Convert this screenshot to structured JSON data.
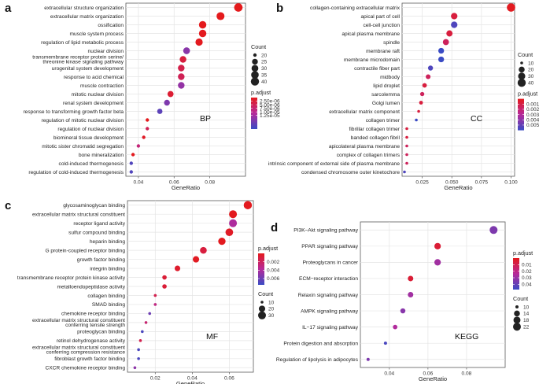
{
  "chart_data": [
    {
      "panel": "a",
      "type": "scatter",
      "annotation": "BP",
      "xlabel": "GeneRatio",
      "xlim": [
        0.033,
        0.1
      ],
      "xticks": [
        0.04,
        0.06,
        0.08
      ],
      "xtick_labels": [
        "0.04",
        "0.06",
        "0.08"
      ],
      "categories": [
        "extracellular structure organization",
        "extracellular matrix organization",
        "ossification",
        "muscle system process",
        "regulation of lipid metabolic process",
        "nuclear division",
        "transmembrane receptor protein serine/\nthreonine kinase signaling pathway",
        "urogenital system development",
        "response to acid chemical",
        "muscle contraction",
        "mitotic nuclear division",
        "renal system development",
        "response to transforming growth factor beta",
        "regulation of mitotic nuclear division",
        "regulation of nuclear division",
        "biomineral tissue development",
        "mitotic sister chromatid segregation",
        "bone mineralization",
        "cold-induced thermogenesis",
        "regulation of cold-induced thermogenesis"
      ],
      "gene_ratio": [
        0.096,
        0.086,
        0.076,
        0.076,
        0.074,
        0.067,
        0.065,
        0.064,
        0.064,
        0.064,
        0.058,
        0.056,
        0.052,
        0.045,
        0.045,
        0.043,
        0.04,
        0.037,
        0.036,
        0.036
      ],
      "count": [
        42,
        38,
        34,
        34,
        33,
        30,
        29,
        29,
        29,
        29,
        26,
        25,
        23,
        20,
        20,
        19,
        18,
        16,
        16,
        16
      ],
      "p_adjust": [
        1e-09,
        2e-08,
        5e-08,
        2e-07,
        3e-07,
        1.5e-05,
        3e-06,
        4e-06,
        5e-06,
        1.4e-05,
        2e-06,
        1.6e-05,
        1.9e-05,
        1e-07,
        5e-06,
        1e-06,
        8e-06,
        2e-07,
        2e-05,
        2e-05
      ],
      "size_legend": {
        "title": "Count",
        "values": [
          20,
          25,
          30,
          35,
          40
        ],
        "labels": [
          "20",
          "25",
          "30",
          "35",
          "40"
        ]
      },
      "color_legend": {
        "title": "p.adjust",
        "min": 0,
        "max": 2.2e-05,
        "ticks": [
          2.5e-06,
          5e-06,
          7.5e-06,
          1e-05,
          1.25e-05
        ],
        "labels": [
          "2.50e-06",
          "5.00e-06",
          "7.50e-06",
          "1.00e-05",
          "1.25e-05"
        ]
      }
    },
    {
      "panel": "b",
      "type": "scatter",
      "annotation": "CC",
      "xlabel": "GeneRatio",
      "xlim": [
        0.008,
        0.103
      ],
      "xticks": [
        0.025,
        0.05,
        0.075,
        0.1
      ],
      "xtick_labels": [
        "0.025",
        "0.050",
        "0.075",
        "0.100"
      ],
      "categories": [
        "collagen-containing extracellular matrix",
        "apical part of cell",
        "cell-cell junction",
        "apical plasma membrane",
        "spindle",
        "membrane raft",
        "membrane microdomain",
        "contractile fiber part",
        "midbody",
        "lipid droplet",
        "sarcolemma",
        "Golgi lumen",
        "extracellular matrix component",
        "collagen trimer",
        "fibrillar collagen trimer",
        "banded collagen fibril",
        "apicolateral plasma membrane",
        "complex of collagen trimers",
        "intrinsic component of external side of plasma membrane",
        "condensed chromosome outer kinetochore"
      ],
      "gene_ratio": [
        0.1,
        0.052,
        0.052,
        0.048,
        0.045,
        0.041,
        0.041,
        0.032,
        0.03,
        0.027,
        0.025,
        0.024,
        0.022,
        0.02,
        0.012,
        0.012,
        0.012,
        0.012,
        0.012,
        0.01
      ],
      "count": [
        42,
        24,
        24,
        22,
        21,
        19,
        19,
        15,
        14,
        13,
        12,
        11,
        10,
        9,
        6,
        6,
        6,
        6,
        6,
        5
      ],
      "p_adjust": [
        0.0001,
        0.0008,
        0.0055,
        0.0008,
        0.0015,
        0.006,
        0.006,
        0.0055,
        0.0015,
        0.0008,
        0.0015,
        0.0008,
        0.0008,
        0.006,
        0.0008,
        0.0008,
        0.0015,
        0.0015,
        0.0015,
        0.0055
      ],
      "size_legend": {
        "title": "Count",
        "values": [
          10,
          20,
          30,
          40
        ],
        "labels": [
          "10",
          "20",
          "30",
          "40"
        ]
      },
      "color_legend": {
        "title": "p.adjust",
        "min": 0,
        "max": 0.006,
        "ticks": [
          0.001,
          0.002,
          0.003,
          0.004,
          0.005
        ],
        "labels": [
          "0.001",
          "0.002",
          "0.003",
          "0.004",
          "0.005"
        ]
      }
    },
    {
      "panel": "c",
      "type": "scatter",
      "annotation": "MF",
      "xlabel": "GeneRatio",
      "xlim": [
        0.005,
        0.073
      ],
      "xticks": [
        0.02,
        0.04,
        0.06
      ],
      "xtick_labels": [
        "0.02",
        "0.04",
        "0.06"
      ],
      "categories": [
        "glycosaminoglycan binding",
        "extracellular matrix structural constituent",
        "receptor ligand activity",
        "sulfur compound binding",
        "heparin binding",
        "G protein-coupled receptor binding",
        "growth factor binding",
        "integrin binding",
        "transmembrane receptor protein kinase activity",
        "metalloendopeptidase activity",
        "collagen binding",
        "SMAD binding",
        "chemokine receptor binding",
        "extracellular matrix structural constituent\nconferring tensile strength",
        "proteoglycan binding",
        "retinol dehydrogenase activity",
        "extracellular matrix structural constituent\nconferring compression resistance",
        "fibroblast growth factor binding",
        "CXCR chemokine receptor binding"
      ],
      "gene_ratio": [
        0.07,
        0.062,
        0.062,
        0.06,
        0.056,
        0.046,
        0.042,
        0.032,
        0.025,
        0.025,
        0.02,
        0.02,
        0.017,
        0.015,
        0.013,
        0.012,
        0.011,
        0.011,
        0.009
      ],
      "count": [
        33,
        30,
        30,
        28,
        26,
        22,
        20,
        16,
        12,
        12,
        10,
        10,
        8,
        7,
        6,
        6,
        6,
        6,
        5
      ],
      "p_adjust": [
        0.0001,
        0.0001,
        0.004,
        0.0003,
        0.0001,
        0.001,
        0.0002,
        0.0005,
        0.0008,
        0.0008,
        0.0015,
        0.003,
        0.006,
        0.0025,
        0.007,
        0.0015,
        0.007,
        0.007,
        0.005
      ],
      "size_legend": {
        "title": "Count",
        "values": [
          10,
          20,
          30
        ],
        "labels": [
          "10",
          "20",
          "30"
        ]
      },
      "color_legend": {
        "title": "p.adjust",
        "min": 0,
        "max": 0.0075,
        "ticks": [
          0.002,
          0.004,
          0.006
        ],
        "labels": [
          "0.002",
          "0.004",
          "0.006"
        ]
      }
    },
    {
      "panel": "d",
      "type": "scatter",
      "annotation": "KEGG",
      "xlabel": "GeneRatio",
      "xlim": [
        0.025,
        0.1
      ],
      "xticks": [
        0.04,
        0.06,
        0.08
      ],
      "xtick_labels": [
        "0.04",
        "0.06",
        "0.08"
      ],
      "categories": [
        "PI3K–Akt signaling pathway",
        "PPAR signaling pathway",
        "Proteoglycans in cancer",
        "ECM−receptor interaction",
        "Relaxin signaling pathway",
        "AMPK signaling pathway",
        "IL−17 signaling pathway",
        "Protein digestion and absorption",
        "Regulation of lipolysis in adipocytes"
      ],
      "gene_ratio": [
        0.094,
        0.065,
        0.065,
        0.051,
        0.051,
        0.047,
        0.043,
        0.038,
        0.029
      ],
      "count": [
        22,
        16,
        16,
        13,
        13,
        12,
        11,
        10,
        8
      ],
      "p_adjust": [
        0.035,
        0.005,
        0.028,
        0.005,
        0.028,
        0.033,
        0.025,
        0.045,
        0.035
      ],
      "size_legend": {
        "title": "Count",
        "values": [
          10,
          14,
          18,
          22
        ],
        "labels": [
          "10",
          "14",
          "18",
          "22"
        ]
      },
      "color_legend": {
        "title": "p.adjust",
        "min": 0,
        "max": 0.048,
        "ticks": [
          0.01,
          0.02,
          0.03,
          0.04
        ],
        "labels": [
          "0.01",
          "0.02",
          "0.03",
          "0.04"
        ]
      }
    }
  ],
  "colors": {
    "low_padjust": "#e41a1c",
    "mid_padjust": "#b62a9a",
    "high_padjust": "#3a4bc4"
  }
}
